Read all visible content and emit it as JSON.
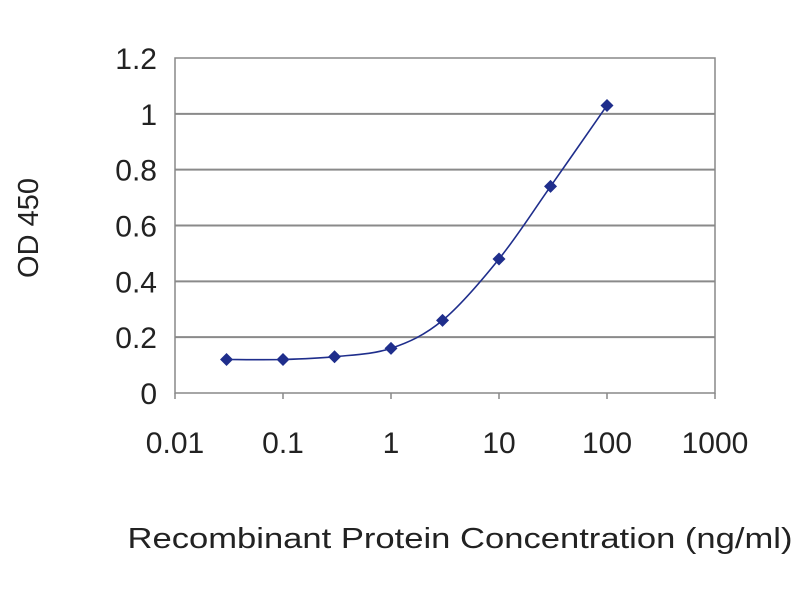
{
  "chart_data": {
    "type": "line",
    "title": "",
    "xlabel": "Recombinant Protein Concentration (ng/ml)",
    "ylabel": "OD 450",
    "x_scale": "log",
    "xlim": [
      0.01,
      1000
    ],
    "ylim": [
      0,
      1.2
    ],
    "x_ticks": [
      {
        "value": 0.01,
        "label": "0.01"
      },
      {
        "value": 0.1,
        "label": "0.1"
      },
      {
        "value": 1,
        "label": "1"
      },
      {
        "value": 10,
        "label": "10"
      },
      {
        "value": 100,
        "label": "100"
      },
      {
        "value": 1000,
        "label": "1000"
      }
    ],
    "y_ticks": [
      {
        "value": 0,
        "label": "0"
      },
      {
        "value": 0.2,
        "label": "0.2"
      },
      {
        "value": 0.4,
        "label": "0.4"
      },
      {
        "value": 0.6,
        "label": "0.6"
      },
      {
        "value": 0.8,
        "label": "0.8"
      },
      {
        "value": 1,
        "label": "1"
      },
      {
        "value": 1.2,
        "label": "1.2"
      }
    ],
    "grid": "horizontal",
    "legend": "none",
    "series": [
      {
        "color": "#1f2e8c",
        "marker": "diamond",
        "x": [
          0.03,
          0.1,
          0.3,
          1,
          3,
          10,
          30,
          100
        ],
        "y": [
          0.12,
          0.12,
          0.13,
          0.16,
          0.26,
          0.48,
          0.74,
          1.03
        ]
      }
    ]
  }
}
